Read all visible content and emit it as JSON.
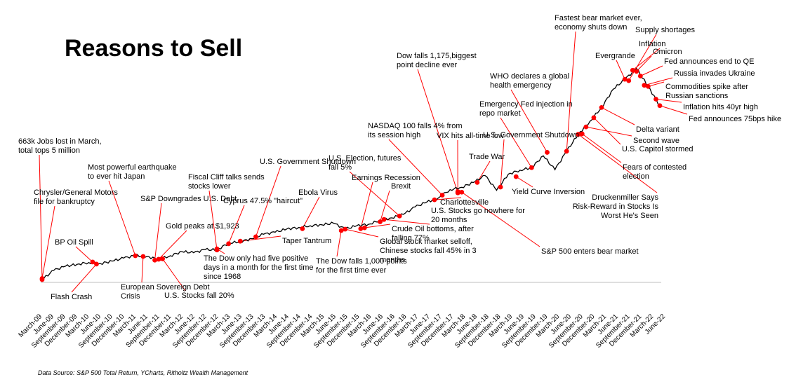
{
  "chart_data": {
    "type": "line",
    "title": "Reasons to Sell",
    "source": "Data Source: S&P 500 Total Return, YCharts, Ritholtz Wealth Management",
    "colors": {
      "line": "#000000",
      "marker": "#ff0000"
    },
    "grid": false,
    "x_range": [
      "2009-03",
      "2022-06"
    ],
    "tick_labels": [
      "March-09",
      "June-09",
      "September-09",
      "December-09",
      "March-10",
      "June-10",
      "September-10",
      "December-10",
      "March-11",
      "June-11",
      "September-11",
      "December-11",
      "March-12",
      "June-12",
      "September-12",
      "December-12",
      "March-13",
      "June-13",
      "September-13",
      "December-13",
      "March-14",
      "June-14",
      "September-14",
      "December-14",
      "March-15",
      "June-15",
      "September-15",
      "December-15",
      "March-16",
      "June-16",
      "September-16",
      "December-16",
      "March-17",
      "June-17",
      "September-17",
      "December-17",
      "March-18",
      "June-18",
      "September-18",
      "December-18",
      "March-19",
      "June-19",
      "September-19",
      "December-19",
      "March-20",
      "June-20",
      "September-20",
      "December-20",
      "March-21",
      "June-21",
      "September-21",
      "December-21",
      "March-22",
      "June-22"
    ],
    "series": [
      {
        "x": [
          "2009-03",
          "2009-06",
          "2009-09",
          "2009-12",
          "2010-03",
          "2010-06",
          "2010-09",
          "2010-12",
          "2011-03",
          "2011-06",
          "2011-09",
          "2011-12",
          "2012-03",
          "2012-06",
          "2012-09",
          "2012-12",
          "2013-03",
          "2013-06",
          "2013-09",
          "2013-12",
          "2014-03",
          "2014-06",
          "2014-09",
          "2014-12",
          "2015-03",
          "2015-06",
          "2015-09",
          "2015-12",
          "2016-03",
          "2016-06",
          "2016-09",
          "2016-12",
          "2017-03",
          "2017-06",
          "2017-09",
          "2017-12",
          "2018-03",
          "2018-06",
          "2018-09",
          "2018-12",
          "2019-03",
          "2019-06",
          "2019-09",
          "2019-12",
          "2020-03",
          "2020-06",
          "2020-09",
          "2020-12",
          "2021-03",
          "2021-06",
          "2021-09",
          "2021-12",
          "2022-03",
          "2022-06"
        ],
        "y": [
          0.0,
          4.0,
          5.8,
          6.6,
          7.4,
          6.9,
          8.0,
          9.3,
          10.4,
          10.0,
          8.7,
          10.3,
          12.1,
          11.6,
          13.0,
          12.8,
          15.8,
          16.4,
          17.7,
          19.6,
          20.5,
          21.9,
          22.5,
          23.3,
          23.7,
          24.4,
          21.9,
          23.3,
          23.9,
          25.6,
          26.7,
          28.2,
          31.4,
          33.5,
          35.3,
          38.9,
          39.9,
          42.0,
          45.0,
          38.6,
          45.6,
          47.3,
          48.4,
          53.5,
          47.5,
          55.5,
          62.8,
          68.4,
          74.4,
          82.3,
          86.6,
          91.2,
          83.5,
          75.2
        ]
      }
    ],
    "events": [
      {
        "date": "2009-03",
        "y": 0.0,
        "label": "663k Jobs lost in March, total tops 5 million"
      },
      {
        "date": "2009-03",
        "y": 0.5,
        "label": "Chrysler/General Motors file for bankruptcy"
      },
      {
        "date": "2010-04",
        "y": 7.6,
        "label": "BP Oil Spill"
      },
      {
        "date": "2010-05",
        "y": 6.7,
        "label": "Flash Crash"
      },
      {
        "date": "2011-03",
        "y": 10.3,
        "label": "Most powerful earthquake to ever hit Japan"
      },
      {
        "date": "2011-05",
        "y": 10.0,
        "label": "European Sovereign Debt Crisis"
      },
      {
        "date": "2011-08",
        "y": 8.4,
        "label": "S&P Downgrades U.S. Debt"
      },
      {
        "date": "2011-09",
        "y": 8.8,
        "label": "Gold peaks at $1,923"
      },
      {
        "date": "2011-10",
        "y": 9.0,
        "label": "U.S. Stocks fall 20%"
      },
      {
        "date": "2012-12",
        "y": 12.8,
        "label": "Fiscal Cliff talks sends stocks lower"
      },
      {
        "date": "2012-12",
        "y": 13.3,
        "label": "The Dow only had five positive days in a month for the first time since 1968"
      },
      {
        "date": "2013-03",
        "y": 15.5,
        "label": "Cyprus 47.5% \"haircut\""
      },
      {
        "date": "2013-06",
        "y": 16.6,
        "label": "Taper Tantrum"
      },
      {
        "date": "2013-10",
        "y": 18.5,
        "label": "U.S. Government Shutdown"
      },
      {
        "date": "2014-10",
        "y": 22.0,
        "label": "Ebola Virus"
      },
      {
        "date": "2015-08",
        "y": 21.2,
        "label": "The Dow falls 1,000 points for the first time ever"
      },
      {
        "date": "2015-09",
        "y": 21.8,
        "label": "Global stock market selloff, Chinese stocks fall 45% in 3 months"
      },
      {
        "date": "2016-01",
        "y": 22.0,
        "label": "Earnings Recession"
      },
      {
        "date": "2016-02",
        "y": 22.4,
        "label": "Crude Oil bottoms, after falling 77%"
      },
      {
        "date": "2016-06",
        "y": 25.0,
        "label": "Brexit"
      },
      {
        "date": "2016-07",
        "y": 26.0,
        "label": "U.S. Stocks go nowhere for 20 months"
      },
      {
        "date": "2016-11",
        "y": 27.5,
        "label": "U.S. Election, futures fall 5%"
      },
      {
        "date": "2017-08",
        "y": 34.5,
        "label": "Charlottesville"
      },
      {
        "date": "2017-10",
        "y": 36.5,
        "label": "NASDAQ 100 falls 4% from its session high"
      },
      {
        "date": "2018-02",
        "y": 37.5,
        "label": "Dow falls 1,175,biggest point decline ever"
      },
      {
        "date": "2018-02",
        "y": 38.0,
        "label": "VIX hits all-time low"
      },
      {
        "date": "2018-03",
        "y": 37.8,
        "label": "S&P 500 enters bear market"
      },
      {
        "date": "2018-07",
        "y": 42.0,
        "label": "Trade War"
      },
      {
        "date": "2019-01",
        "y": 40.0,
        "label": "U.S. Government Shutdown"
      },
      {
        "date": "2019-05",
        "y": 44.5,
        "label": "Yield Curve Inversion"
      },
      {
        "date": "2019-09",
        "y": 48.4,
        "label": "Emergency Fed injection in repo market"
      },
      {
        "date": "2020-01",
        "y": 55.0,
        "label": "WHO declares a global health emergency"
      },
      {
        "date": "2020-06",
        "y": 55.5,
        "label": "Fastest bear market ever, economy shuts down"
      },
      {
        "date": "2020-09",
        "y": 62.8,
        "label": "Druckenmiller Says Risk-Reward in Stocks Is Worst He's Seen"
      },
      {
        "date": "2020-10",
        "y": 63.0,
        "label": "Fears of contested election"
      },
      {
        "date": "2020-11",
        "y": 66.0,
        "label": "Second wave"
      },
      {
        "date": "2021-01",
        "y": 70.0,
        "label": "U.S. Capitol stormed"
      },
      {
        "date": "2021-03",
        "y": 74.4,
        "label": "Delta variant"
      },
      {
        "date": "2021-09",
        "y": 86.6,
        "label": "Evergrande"
      },
      {
        "date": "2021-10",
        "y": 86.0,
        "label": "Supply shortages"
      },
      {
        "date": "2021-11",
        "y": 90.5,
        "label": "Inflation"
      },
      {
        "date": "2021-12",
        "y": 90.0,
        "label": "Omicron"
      },
      {
        "date": "2022-01",
        "y": 88.0,
        "label": "Fed announces end to QE"
      },
      {
        "date": "2022-02",
        "y": 84.0,
        "label": "Russia invades Ukraine"
      },
      {
        "date": "2022-03",
        "y": 83.5,
        "label": "Commodities spike after Russian sanctions"
      },
      {
        "date": "2022-05",
        "y": 78.0,
        "label": "Inflation hits 40yr high"
      },
      {
        "date": "2022-06",
        "y": 75.2,
        "label": "Fed announces 75bps hike"
      }
    ]
  }
}
